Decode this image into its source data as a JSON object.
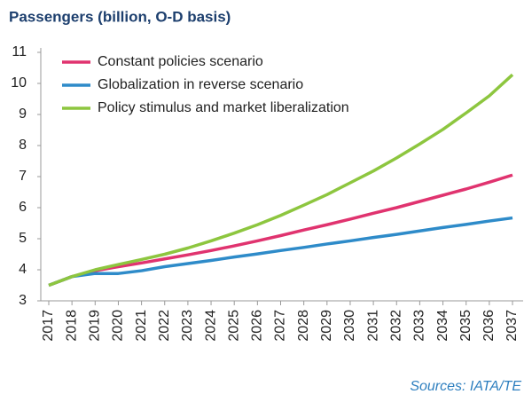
{
  "chart_data": {
    "type": "line",
    "title": "Passengers (billion, O-D basis)",
    "source": "Sources: IATA/TE",
    "categories": [
      "2017",
      "2018",
      "2019",
      "2020",
      "2021",
      "2022",
      "2023",
      "2024",
      "2025",
      "2026",
      "2027",
      "2028",
      "2029",
      "2030",
      "2031",
      "2032",
      "2033",
      "2034",
      "2035",
      "2036",
      "2037"
    ],
    "series": [
      {
        "name": "Constant policies scenario",
        "color": "#e0336f",
        "values": [
          3.5,
          3.78,
          3.97,
          4.1,
          4.22,
          4.35,
          4.48,
          4.62,
          4.77,
          4.93,
          5.1,
          5.28,
          5.45,
          5.63,
          5.82,
          6.0,
          6.2,
          6.4,
          6.6,
          6.82,
          7.05
        ]
      },
      {
        "name": "Globalization in reverse scenario",
        "color": "#2e8bc9",
        "values": [
          3.5,
          3.78,
          3.88,
          3.88,
          3.97,
          4.1,
          4.2,
          4.3,
          4.41,
          4.51,
          4.62,
          4.72,
          4.83,
          4.93,
          5.04,
          5.14,
          5.25,
          5.36,
          5.46,
          5.57,
          5.67
        ]
      },
      {
        "name": "Policy stimulus and market liberalization",
        "color": "#8dc63f",
        "values": [
          3.5,
          3.78,
          4.0,
          4.17,
          4.33,
          4.5,
          4.7,
          4.93,
          5.18,
          5.45,
          5.75,
          6.08,
          6.42,
          6.8,
          7.18,
          7.6,
          8.05,
          8.52,
          9.05,
          9.6,
          10.28
        ]
      }
    ],
    "ylim": [
      3,
      11
    ],
    "yticks": [
      3,
      4,
      5,
      6,
      7,
      8,
      9,
      10,
      11
    ],
    "legend": "upper left"
  }
}
